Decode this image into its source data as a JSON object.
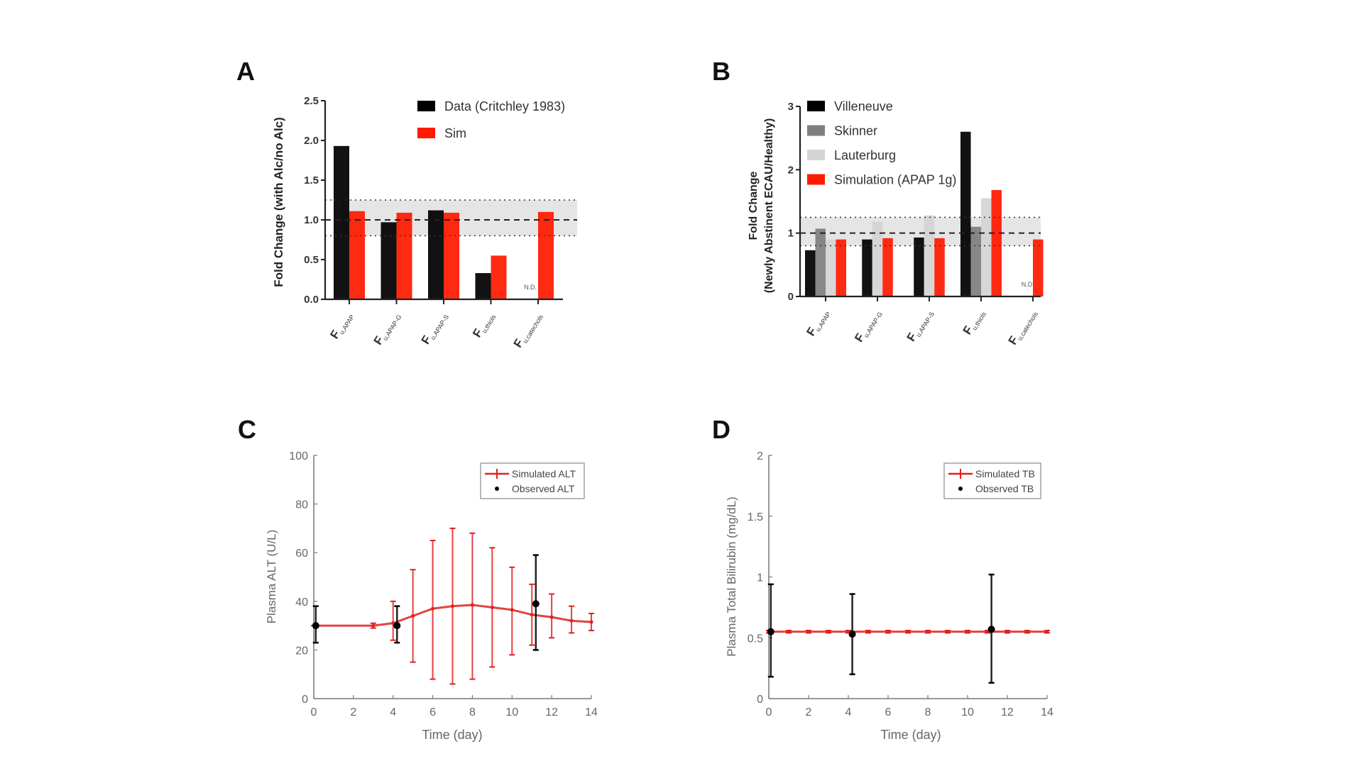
{
  "chart_data": [
    {
      "panel": "A",
      "type": "bar",
      "ylabel": "Fold Change (with Alc/no Alc)",
      "ylim": [
        0,
        2.5
      ],
      "yticks": [
        "0.0",
        "0.5",
        "1.0",
        "1.5",
        "2.0",
        "2.5"
      ],
      "categories": [
        {
          "main": "F",
          "sub": "u,APAP"
        },
        {
          "main": "F",
          "sub": "u,APAP-G"
        },
        {
          "main": "F",
          "sub": "u,APAP-S"
        },
        {
          "main": "F",
          "sub": "u,thiols"
        },
        {
          "main": "F",
          "sub": "u,catechols"
        }
      ],
      "series": [
        {
          "name": "Data (Critchley 1983)",
          "color": "#000000",
          "values": [
            1.93,
            0.97,
            1.12,
            0.33,
            "N.D."
          ]
        },
        {
          "name": "Sim",
          "color": "#ff1a00",
          "values": [
            1.11,
            1.09,
            1.09,
            0.55,
            1.1
          ]
        }
      ],
      "reference_band": [
        0.8,
        1.25
      ],
      "reference_line": 1.0,
      "legend": "top-right"
    },
    {
      "panel": "B",
      "type": "bar",
      "ylabel": [
        "Fold Change",
        "(Newly Abstinent  ECAU/Healthy)"
      ],
      "ylim": [
        0,
        3
      ],
      "yticks": [
        "0",
        "1",
        "2",
        "3"
      ],
      "categories": [
        {
          "main": "F",
          "sub": "u,APAP"
        },
        {
          "main": "F",
          "sub": "u,APAP-G"
        },
        {
          "main": "F",
          "sub": "u,APAP-S"
        },
        {
          "main": "F",
          "sub": "u,thiols"
        },
        {
          "main": "F",
          "sub": "u,catechols"
        }
      ],
      "series": [
        {
          "name": "Villeneuve",
          "color": "#000000",
          "values": [
            0.73,
            0.9,
            0.93,
            2.6,
            "N.D."
          ]
        },
        {
          "name": "Skinner",
          "color": "#7f7f7f",
          "values": [
            1.07,
            null,
            null,
            1.1,
            null
          ]
        },
        {
          "name": "Lauterburg",
          "color": "#d4d4d4",
          "values": [
            0.9,
            1.18,
            1.28,
            1.55,
            null
          ]
        },
        {
          "name": "Simulation (APAP 1g)",
          "color": "#ff1a00",
          "values": [
            0.9,
            0.92,
            0.92,
            1.68,
            0.9
          ]
        }
      ],
      "reference_band": [
        0.8,
        1.25
      ],
      "reference_line": 1.0,
      "legend": "top-left"
    },
    {
      "panel": "C",
      "type": "line",
      "xlabel": "Time (day)",
      "ylabel": "Plasma ALT (U/L)",
      "xlim": [
        0,
        14
      ],
      "ylim": [
        0,
        100
      ],
      "xticks": [
        "0",
        "2",
        "4",
        "6",
        "8",
        "10",
        "12",
        "14"
      ],
      "yticks": [
        "0",
        "20",
        "40",
        "60",
        "80",
        "100"
      ],
      "series": [
        {
          "name": "Simulated ALT",
          "color": "#e02020",
          "kind": "line-errorbar",
          "x": [
            0,
            3,
            4,
            5,
            6,
            7,
            8,
            9,
            10,
            11,
            12,
            13,
            14
          ],
          "y": [
            30,
            30,
            31,
            34,
            37,
            38,
            38.5,
            37.5,
            36.5,
            34.5,
            33.5,
            32,
            31.5
          ],
          "low": [
            30,
            29,
            24,
            15,
            8,
            6,
            8,
            13,
            18,
            22,
            25,
            27,
            28
          ],
          "high": [
            30,
            31,
            40,
            53,
            65,
            70,
            68,
            62,
            54,
            47,
            43,
            38,
            35
          ]
        },
        {
          "name": "Observed ALT",
          "color": "#000000",
          "kind": "point-errorbar",
          "x": [
            0.1,
            4.2,
            11.2
          ],
          "y": [
            30,
            30,
            39
          ],
          "low": [
            23,
            23,
            20
          ],
          "high": [
            38,
            38,
            59
          ]
        }
      ],
      "legend": "top-right"
    },
    {
      "panel": "D",
      "type": "line",
      "xlabel": "Time (day)",
      "ylabel": "Plasma Total Bilirubin (mg/dL)",
      "xlim": [
        0,
        14
      ],
      "ylim": [
        0,
        2
      ],
      "xticks": [
        "0",
        "2",
        "4",
        "6",
        "8",
        "10",
        "12",
        "14"
      ],
      "yticks": [
        "0",
        "0.5",
        "1",
        "1.5",
        "2"
      ],
      "series": [
        {
          "name": "Simulated TB",
          "color": "#e02020",
          "kind": "line-errorbar",
          "x": [
            0,
            1,
            2,
            3,
            4,
            5,
            6,
            7,
            8,
            9,
            10,
            11,
            12,
            13,
            14
          ],
          "y": [
            0.55,
            0.55,
            0.55,
            0.55,
            0.55,
            0.55,
            0.55,
            0.55,
            0.55,
            0.55,
            0.55,
            0.55,
            0.55,
            0.55,
            0.55
          ],
          "low": [
            0.54,
            0.54,
            0.54,
            0.54,
            0.54,
            0.54,
            0.54,
            0.54,
            0.54,
            0.54,
            0.54,
            0.54,
            0.54,
            0.54,
            0.54
          ],
          "high": [
            0.56,
            0.56,
            0.56,
            0.56,
            0.56,
            0.56,
            0.56,
            0.56,
            0.56,
            0.56,
            0.56,
            0.56,
            0.56,
            0.56,
            0.56
          ]
        },
        {
          "name": "Observed TB",
          "color": "#000000",
          "kind": "point-errorbar",
          "x": [
            0.1,
            4.2,
            11.2
          ],
          "y": [
            0.55,
            0.53,
            0.57
          ],
          "low": [
            0.18,
            0.2,
            0.13
          ],
          "high": [
            0.94,
            0.86,
            1.02
          ]
        }
      ],
      "legend": "top-right"
    }
  ],
  "nd_label": "N.D."
}
